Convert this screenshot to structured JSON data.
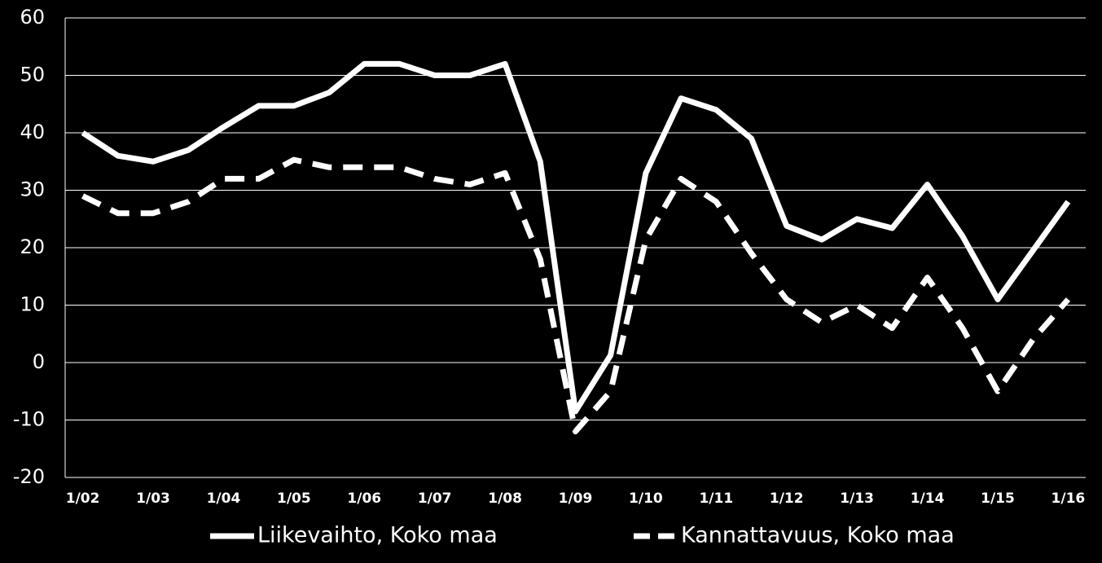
{
  "chart_data": {
    "type": "line",
    "categories": [
      "1/02",
      null,
      "1/03",
      null,
      "1/04",
      null,
      "1/05",
      null,
      "1/06",
      null,
      "1/07",
      null,
      "1/08",
      null,
      "1/09",
      null,
      "1/10",
      null,
      "1/11",
      null,
      "1/12",
      null,
      "1/13",
      null,
      "1/14",
      null,
      "1/15",
      null,
      "1/16"
    ],
    "series": [
      {
        "name": "Liikevaihto, Koko maa",
        "color": "#ffffff",
        "style": "solid",
        "values": [
          40,
          36,
          35,
          37,
          41,
          44.7,
          44.7,
          47,
          52,
          52,
          50,
          50,
          52,
          35,
          -8.5,
          1.3,
          33,
          46,
          44,
          39,
          23.8,
          21.4,
          25,
          23.4,
          31,
          22,
          11,
          19.5,
          28
        ]
      },
      {
        "name": "Kannattavuus, Koko maa",
        "color": "#ffffff",
        "style": "dashed",
        "values": [
          29,
          26,
          26,
          28,
          32,
          32,
          35.3,
          34,
          34,
          34,
          32,
          31,
          33,
          18,
          -12,
          -5,
          21.4,
          32,
          28,
          19,
          11,
          7,
          10,
          6,
          14.8,
          6,
          -5,
          4,
          11
        ]
      }
    ],
    "ylim": [
      -20,
      60
    ],
    "yticks": [
      -20,
      -10,
      0,
      10,
      20,
      30,
      40,
      50,
      60
    ],
    "grid": true,
    "legend": "bottom"
  }
}
